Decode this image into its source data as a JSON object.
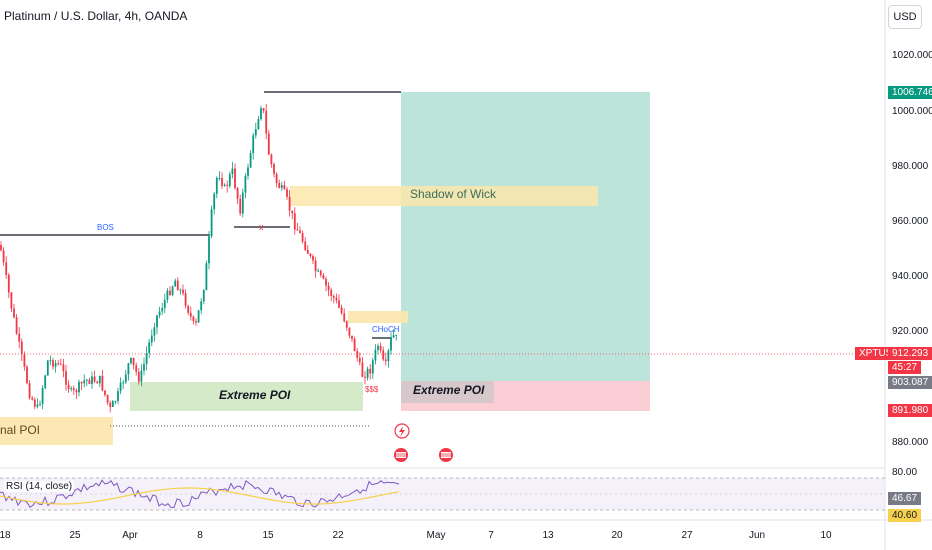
{
  "symbol_title": "Platinum / U.S. Dollar, 4h, OANDA",
  "currency_button": "USD",
  "price_axis": [
    "1020.000",
    "1000.000",
    "980.000",
    "960.000",
    "940.000",
    "920.000",
    "880.000"
  ],
  "rsi_axis_top": "80.00",
  "date_axis": [
    "18",
    "25",
    "Apr",
    "8",
    "15",
    "22",
    "May",
    "7",
    "13",
    "20",
    "27",
    "Jun",
    "10"
  ],
  "price_tags": {
    "target": {
      "text": "1006.746",
      "color": "#089981"
    },
    "symbol": {
      "text": "XPTUSD",
      "color": "#f23645"
    },
    "last": {
      "text": "912.293",
      "color": "#f23645"
    },
    "countdown": {
      "text": "45:27",
      "color": "#f23645"
    },
    "entry": {
      "text": "903.087",
      "color": "#787b86"
    },
    "stop": {
      "text": "891.980",
      "color": "#f23645"
    },
    "rsi_value": {
      "text": "46.67",
      "color": "#787b86"
    },
    "rsi_ma": {
      "text": "40.60",
      "color": "#f7d04e"
    }
  },
  "rsi_title": "RSI (14, close)",
  "annotations": {
    "bos": "BOS",
    "choch": "CHoCH",
    "sss": "$$$",
    "x_mark": "x",
    "shadow_of_wick": "Shadow of Wick",
    "extreme_poi_left": "Extreme POI",
    "extreme_poi_right": "Extreme POI",
    "internal_poi": "nal POI"
  },
  "colors": {
    "bull": "#089981",
    "bear": "#f23645",
    "profit_zone": "#b2dfd5",
    "loss_zone": "#f9c5cc",
    "poi_green": "#cfe8c3",
    "poi_yellow": "#fce6aa",
    "rsi_line": "#7e57c2",
    "rsi_ma": "#f7d04e"
  }
}
